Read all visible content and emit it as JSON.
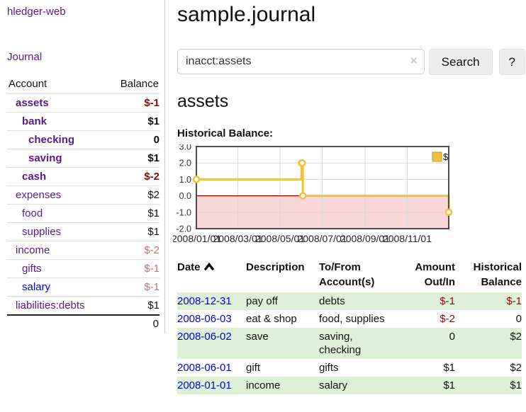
{
  "app": {
    "title": "hledger-web"
  },
  "sidebar": {
    "journal_link": "Journal",
    "accounts_table": {
      "account_header": "Account",
      "balance_header": "Balance",
      "rows": [
        {
          "name": "assets",
          "balance": "$-1",
          "level": 1,
          "bold": true,
          "balance_style": "negative-strong",
          "link_style": "visited"
        },
        {
          "name": "bank",
          "balance": "$1",
          "level": 2,
          "bold": true,
          "balance_style": "normal",
          "link_style": "visited"
        },
        {
          "name": "checking",
          "balance": "0",
          "level": 3,
          "bold": true,
          "balance_style": "normal",
          "link_style": "visited"
        },
        {
          "name": "saving",
          "balance": "$1",
          "level": 3,
          "bold": true,
          "balance_style": "normal",
          "link_style": "visited"
        },
        {
          "name": "cash",
          "balance": "$-2",
          "level": 2,
          "bold": true,
          "balance_style": "negative-strong",
          "link_style": "visited"
        },
        {
          "name": "expenses",
          "balance": "$2",
          "level": 1,
          "bold": false,
          "balance_style": "normal",
          "link_style": "visited"
        },
        {
          "name": "food",
          "balance": "$1",
          "level": 2,
          "bold": false,
          "balance_style": "normal",
          "link_style": "visited"
        },
        {
          "name": "supplies",
          "balance": "$1",
          "level": 2,
          "bold": false,
          "balance_style": "normal",
          "link_style": "visited"
        },
        {
          "name": "income",
          "balance": "$-2",
          "level": 1,
          "bold": false,
          "balance_style": "negative-soft",
          "link_style": "visited"
        },
        {
          "name": "gifts",
          "balance": "$-1",
          "level": 2,
          "bold": false,
          "balance_style": "negative-soft",
          "link_style": "visited"
        },
        {
          "name": "salary",
          "balance": "$-1",
          "level": 2,
          "bold": false,
          "balance_style": "negative-soft",
          "link_style": "unvisited"
        },
        {
          "name": "liabilities:debts",
          "balance": "$1",
          "level": 1,
          "bold": false,
          "balance_style": "normal",
          "link_style": "visited"
        }
      ],
      "total": "0"
    }
  },
  "main": {
    "journal_title": "sample.journal",
    "search": {
      "value": "inacct:assets",
      "clear_icon": "×",
      "search_button": "Search",
      "help_button": "?"
    },
    "account_heading": "assets",
    "chart_title": "Historical Balance:"
  },
  "chart_data": {
    "type": "line",
    "title": "Historical Balance",
    "step": true,
    "series": [
      {
        "name": "$",
        "color": "#edc240",
        "points": [
          {
            "x": "2008-01-01",
            "y": 1
          },
          {
            "x": "2008-06-01",
            "y": 2
          },
          {
            "x": "2008-06-02",
            "y": 2
          },
          {
            "x": "2008-06-03",
            "y": 0
          },
          {
            "x": "2008-12-31",
            "y": -1
          }
        ]
      }
    ],
    "x_range": [
      "2008-01-01",
      "2008-12-31"
    ],
    "ylim": [
      -2,
      3
    ],
    "yticks": [
      3,
      2,
      1,
      0,
      -1,
      -2
    ],
    "ytick_labels": [
      "3.0",
      "2.0",
      "1.0",
      "0.0",
      "-1.0",
      "-2.0"
    ],
    "xticks": [
      "2008/01/01",
      "2008/03/01",
      "2008/05/01",
      "2008/07/01",
      "2008/09/01",
      "2008/11/01"
    ],
    "grid": true,
    "legend": {
      "label": "$",
      "position": "top-right"
    },
    "negative_region_shaded": true,
    "colors": {
      "series": "#edc240",
      "negative_fill": "#f9d7d7",
      "zero_line": "#8b0000",
      "grid_line": "#d9d9d9",
      "border": "#4d4d4d"
    }
  },
  "register": {
    "headers": [
      {
        "lines": [
          "Date"
        ],
        "sort": "ascending",
        "align": "left"
      },
      {
        "lines": [
          "Description"
        ],
        "align": "left"
      },
      {
        "lines": [
          "To/From",
          "Account(s)"
        ],
        "align": "left"
      },
      {
        "lines": [
          "Amount",
          "Out/In"
        ],
        "align": "right"
      },
      {
        "lines": [
          "Historical",
          "Balance"
        ],
        "align": "right"
      }
    ],
    "rows": [
      {
        "date": "2008-12-31",
        "description": "pay off",
        "accounts": "debts",
        "amount": "$-1",
        "amount_negative": true,
        "balance": "$-1",
        "balance_negative": true
      },
      {
        "date": "2008-06-03",
        "description": "eat & shop",
        "accounts": "food, supplies",
        "amount": "$-2",
        "amount_negative": true,
        "balance": "0",
        "balance_negative": false
      },
      {
        "date": "2008-06-02",
        "description": "save",
        "accounts": "saving, checking",
        "amount": "0",
        "amount_negative": false,
        "balance": "$2",
        "balance_negative": false
      },
      {
        "date": "2008-06-01",
        "description": "gift",
        "accounts": "gifts",
        "amount": "$1",
        "amount_negative": false,
        "balance": "$2",
        "balance_negative": false
      },
      {
        "date": "2008-01-01",
        "description": "income",
        "accounts": "salary",
        "amount": "$1",
        "amount_negative": false,
        "balance": "$1",
        "balance_negative": false
      }
    ]
  }
}
